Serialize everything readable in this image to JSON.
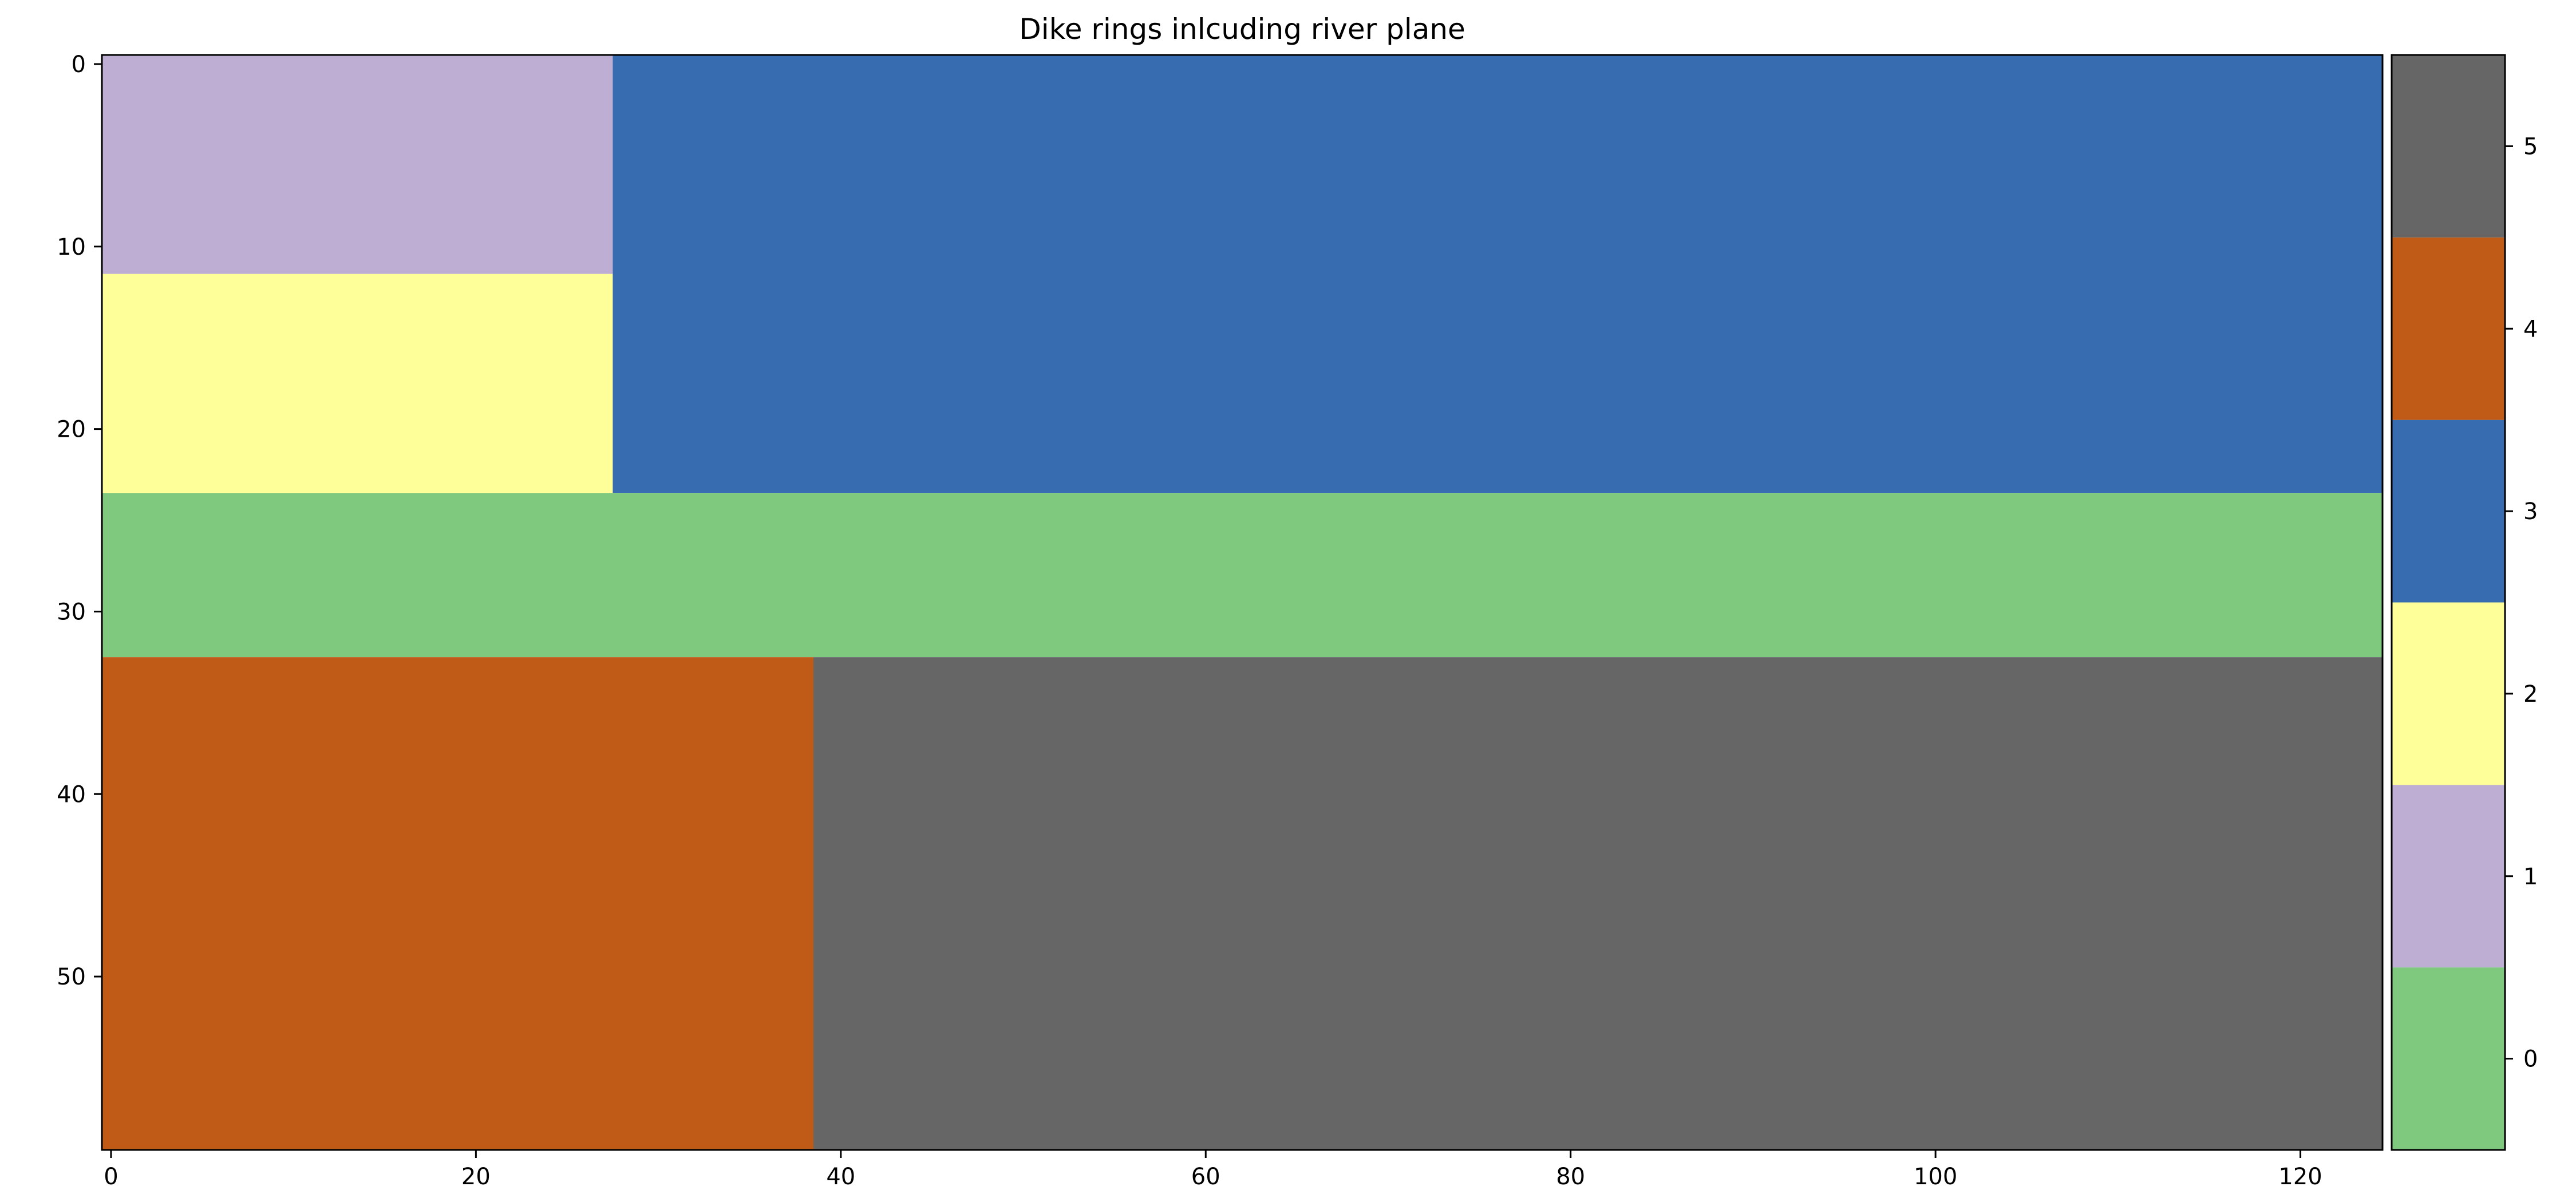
{
  "chart_data": {
    "type": "heatmap",
    "title": "Dike rings inlcuding river plane",
    "xlabel": "",
    "ylabel": "",
    "x_range": [
      -0.5,
      124.5
    ],
    "y_range": [
      59.5,
      -0.5
    ],
    "x_ticks": [
      0,
      20,
      40,
      60,
      80,
      100,
      120
    ],
    "y_ticks": [
      0,
      10,
      20,
      30,
      40,
      50
    ],
    "regions": [
      {
        "value": 1,
        "x": [
          0,
          27
        ],
        "y": [
          0,
          11
        ]
      },
      {
        "value": 2,
        "x": [
          0,
          27
        ],
        "y": [
          12,
          23
        ]
      },
      {
        "value": 3,
        "x": [
          28,
          124
        ],
        "y": [
          0,
          23
        ]
      },
      {
        "value": 0,
        "x": [
          0,
          124
        ],
        "y": [
          24,
          32
        ]
      },
      {
        "value": 4,
        "x": [
          0,
          38
        ],
        "y": [
          33,
          59
        ]
      },
      {
        "value": 5,
        "x": [
          39,
          124
        ],
        "y": [
          33,
          59
        ]
      }
    ],
    "colorbar": {
      "ticks": [
        0,
        1,
        2,
        3,
        4,
        5
      ],
      "range": [
        -0.5,
        5.5
      ],
      "colors": {
        "0": "#7fc97f",
        "1": "#beaed4",
        "2": "#ffff99",
        "3": "#386cb0",
        "4": "#bf5b17",
        "5": "#666666"
      }
    },
    "grid": false
  }
}
